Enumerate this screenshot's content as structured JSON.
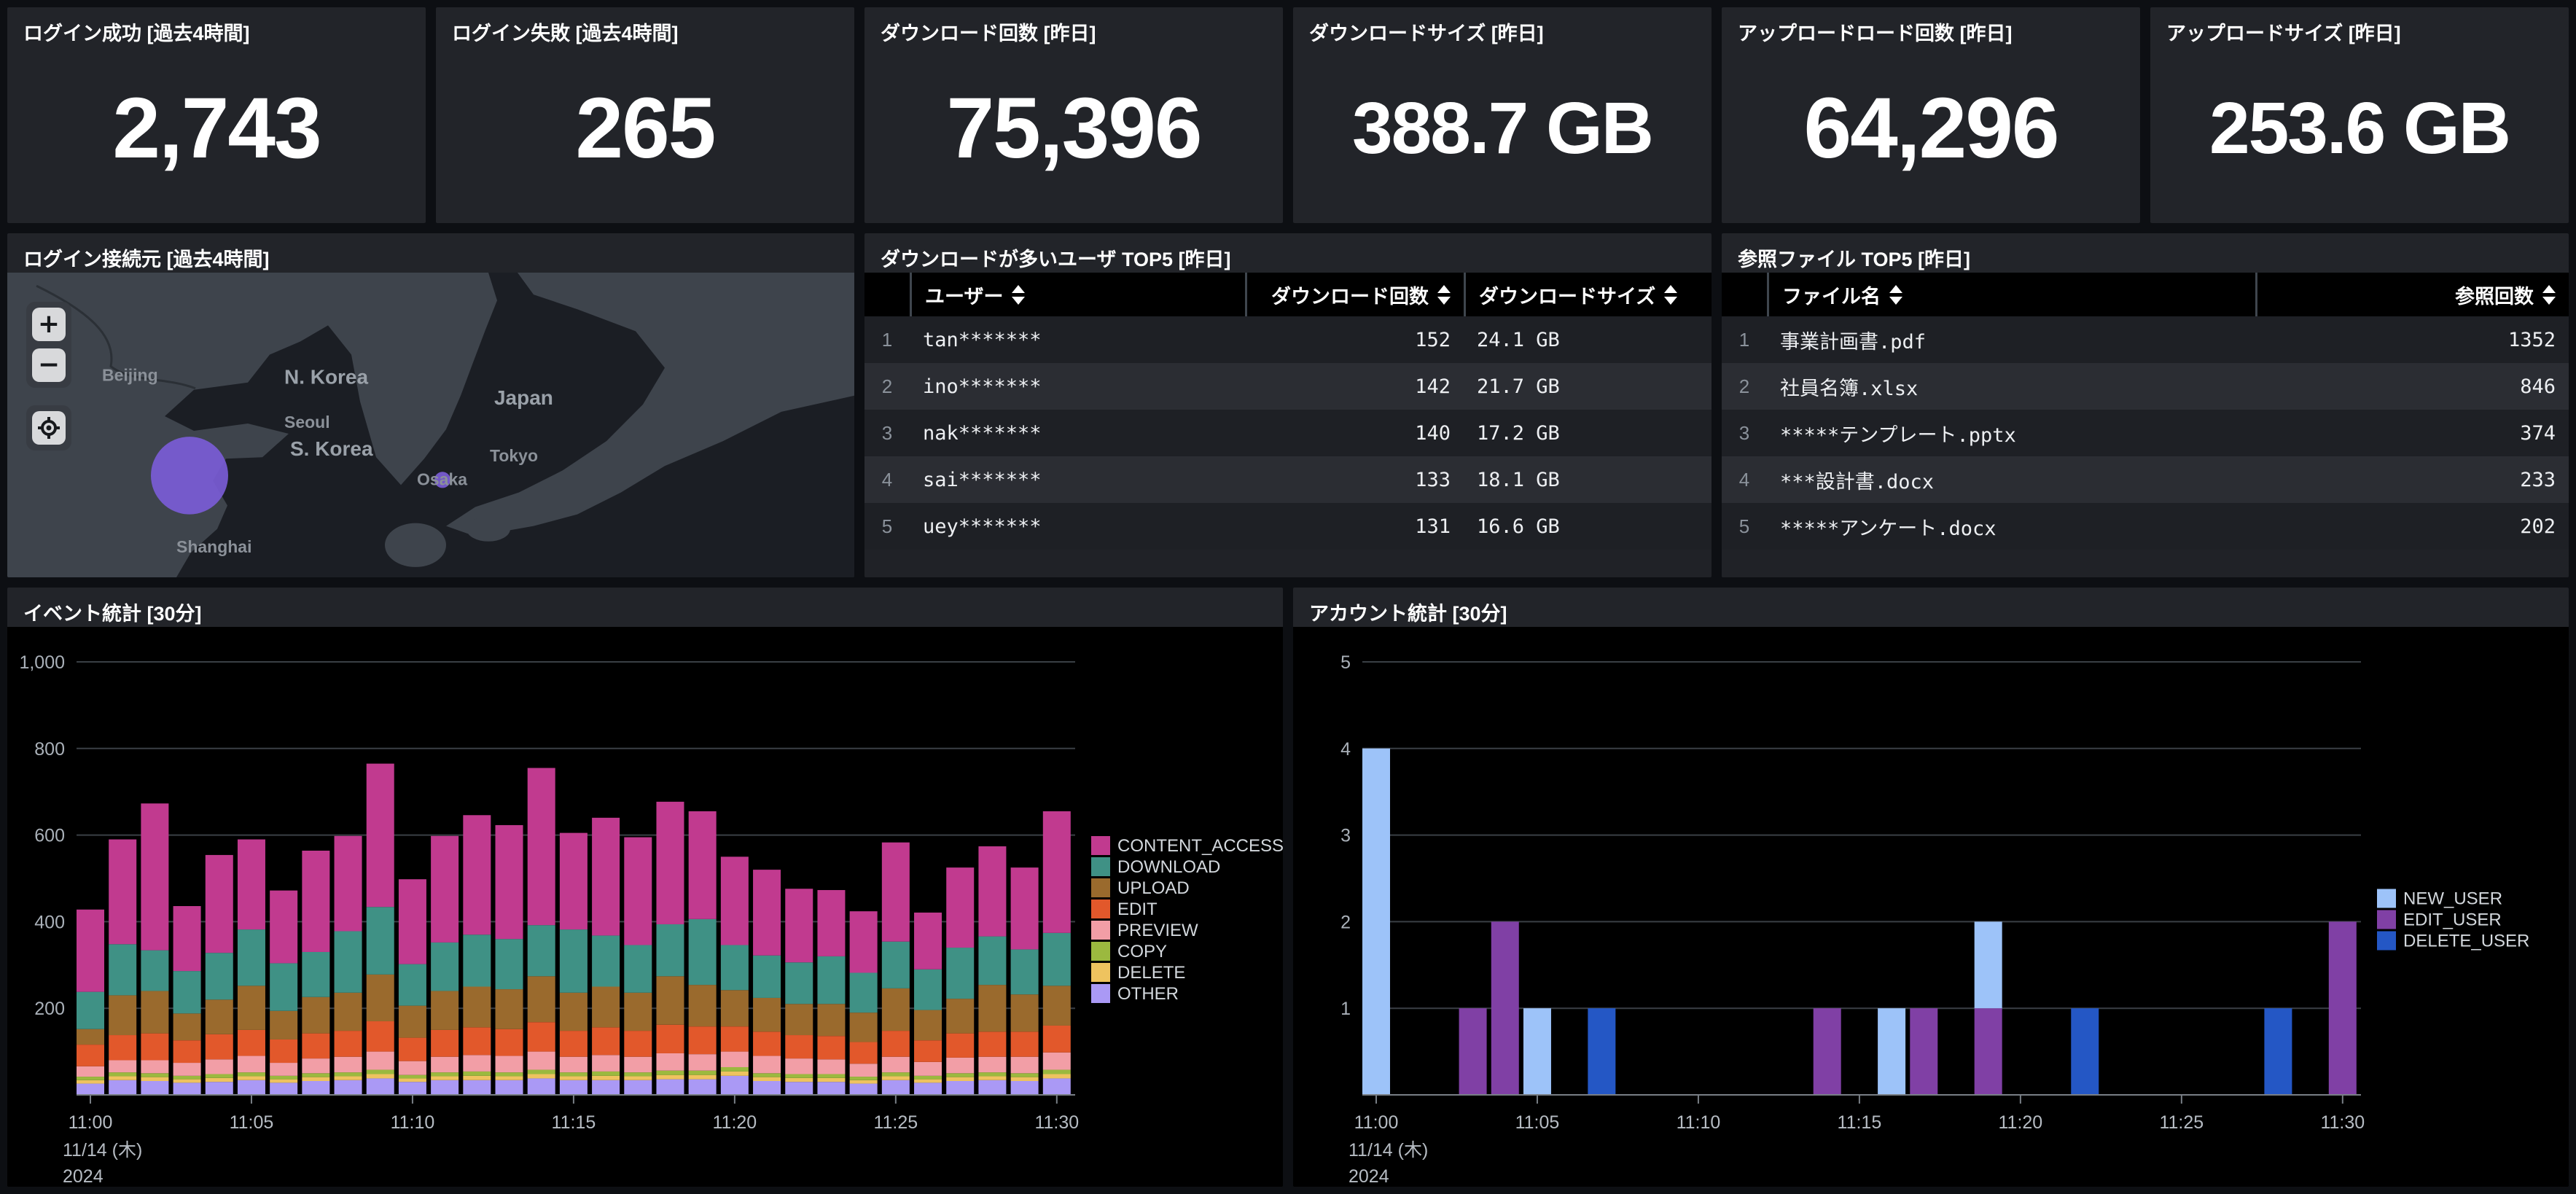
{
  "stats": [
    {
      "title": "ログイン成功 [過去4時間]",
      "value": "2,743"
    },
    {
      "title": "ログイン失敗 [過去4時間]",
      "value": "265"
    },
    {
      "title": "ダウンロード回数 [昨日]",
      "value": "75,396"
    },
    {
      "title": "ダウンロードサイズ [昨日]",
      "value": "388.7 GB"
    },
    {
      "title": "アップロードロード回数 [昨日]",
      "value": "64,296"
    },
    {
      "title": "アップロードサイズ [昨日]",
      "value": "253.6 GB"
    }
  ],
  "map": {
    "title": "ログイン接続元 [過去4時間]",
    "controls": {
      "zoom_in": "+",
      "zoom_out": "−",
      "locate": "locate"
    },
    "labels": {
      "beijing": "Beijing",
      "n_korea": "N. Korea",
      "seoul": "Seoul",
      "s_korea": "S. Korea",
      "japan": "Japan",
      "tokyo": "Tokyo",
      "osaka": "Osaka",
      "shanghai": "Shanghai"
    },
    "marker_color": "#7a5cd6",
    "land_color": "#3e444c",
    "sea_color": "#1b1e24"
  },
  "users_table": {
    "title": "ダウンロードが多いユーザ TOP5 [昨日]",
    "headers": [
      "ユーザー",
      "ダウンロード回数",
      "ダウンロードサイズ"
    ],
    "rows": [
      [
        "1",
        "tan*******",
        "152",
        "24.1 GB"
      ],
      [
        "2",
        "ino*******",
        "142",
        "21.7 GB"
      ],
      [
        "3",
        "nak*******",
        "140",
        "17.2 GB"
      ],
      [
        "4",
        "sai*******",
        "133",
        "18.1 GB"
      ],
      [
        "5",
        "uey*******",
        "131",
        "16.6 GB"
      ]
    ]
  },
  "files_table": {
    "title": "参照ファイル TOP5 [昨日]",
    "headers": [
      "ファイル名",
      "参照回数"
    ],
    "rows": [
      [
        "1",
        "事業計画書.pdf",
        "1352"
      ],
      [
        "2",
        "社員名簿.xlsx",
        "846"
      ],
      [
        "3",
        "*****テンプレート.pptx",
        "374"
      ],
      [
        "4",
        "***設計書.docx",
        "233"
      ],
      [
        "5",
        "*****アンケート.docx",
        "202"
      ]
    ]
  },
  "chart_data": [
    {
      "type": "bar",
      "stacked": true,
      "title": "イベント統計 [30分]",
      "xlabel": "",
      "ylabel": "",
      "ylim": [
        0,
        1000
      ],
      "grid": true,
      "legend_position": "right",
      "x": [
        "11:00",
        "11:01",
        "11:02",
        "11:03",
        "11:04",
        "11:05",
        "11:06",
        "11:07",
        "11:08",
        "11:09",
        "11:10",
        "11:11",
        "11:12",
        "11:13",
        "11:14",
        "11:15",
        "11:16",
        "11:17",
        "11:18",
        "11:19",
        "11:20",
        "11:21",
        "11:22",
        "11:23",
        "11:24",
        "11:25",
        "11:26",
        "11:27",
        "11:28",
        "11:29",
        "11:30"
      ],
      "xticks": [
        0,
        5,
        10,
        15,
        20,
        25,
        30
      ],
      "x_date_lines": [
        "11/14 (木)",
        "2024"
      ],
      "yticks": [
        {
          "v": 200,
          "label": "200"
        },
        {
          "v": 400,
          "label": "400"
        },
        {
          "v": 600,
          "label": "600"
        },
        {
          "v": 800,
          "label": "800"
        },
        {
          "v": 1000,
          "label": "1,000"
        }
      ],
      "series": [
        {
          "name": "CONTENT_ACCESS",
          "color": "#c13a8f",
          "values": [
            190,
            242,
            339,
            150,
            226,
            208,
            168,
            234,
            220,
            331,
            196,
            246,
            276,
            263,
            363,
            223,
            272,
            249,
            283,
            249,
            204,
            198,
            170,
            153,
            142,
            229,
            131,
            185,
            208,
            189,
            281
          ]
        },
        {
          "name": "DOWNLOAD",
          "color": "#3f9185",
          "values": [
            86,
            118,
            94,
            98,
            108,
            130,
            110,
            104,
            142,
            156,
            96,
            112,
            120,
            116,
            118,
            146,
            118,
            110,
            120,
            152,
            104,
            98,
            96,
            110,
            92,
            108,
            94,
            118,
            112,
            104,
            122
          ]
        },
        {
          "name": "UPLOAD",
          "color": "#9a6a2d",
          "values": [
            36,
            92,
            98,
            62,
            80,
            102,
            66,
            84,
            88,
            108,
            74,
            90,
            94,
            92,
            106,
            88,
            94,
            88,
            112,
            96,
            84,
            78,
            72,
            74,
            68,
            98,
            70,
            80,
            108,
            86,
            92
          ]
        },
        {
          "name": "EDIT",
          "color": "#e2582b",
          "values": [
            50,
            58,
            62,
            52,
            58,
            60,
            54,
            58,
            60,
            70,
            54,
            62,
            64,
            62,
            68,
            60,
            64,
            60,
            66,
            64,
            58,
            56,
            54,
            54,
            50,
            60,
            50,
            56,
            58,
            58,
            62
          ]
        },
        {
          "name": "PREVIEW",
          "color": "#f29ea6",
          "values": [
            24,
            28,
            30,
            30,
            34,
            38,
            30,
            34,
            36,
            42,
            32,
            36,
            38,
            38,
            42,
            36,
            38,
            36,
            40,
            38,
            36,
            40,
            36,
            34,
            30,
            36,
            32,
            36,
            36,
            38,
            40
          ]
        },
        {
          "name": "COPY",
          "color": "#9bb93f",
          "values": [
            8,
            9,
            9,
            8,
            9,
            9,
            8,
            9,
            9,
            10,
            8,
            9,
            10,
            9,
            10,
            9,
            10,
            9,
            10,
            10,
            10,
            9,
            9,
            9,
            8,
            9,
            8,
            9,
            9,
            9,
            10
          ]
        },
        {
          "name": "DELETE",
          "color": "#eec35f",
          "values": [
            8,
            9,
            9,
            8,
            9,
            9,
            8,
            9,
            9,
            10,
            8,
            9,
            10,
            9,
            10,
            9,
            10,
            9,
            10,
            10,
            10,
            9,
            9,
            9,
            8,
            9,
            8,
            9,
            9,
            9,
            10
          ]
        },
        {
          "name": "OTHER",
          "color": "#aa99f5",
          "values": [
            26,
            34,
            32,
            28,
            30,
            34,
            28,
            32,
            34,
            38,
            30,
            34,
            34,
            34,
            38,
            34,
            34,
            34,
            36,
            36,
            44,
            32,
            30,
            30,
            26,
            34,
            28,
            32,
            34,
            32,
            38
          ]
        }
      ]
    },
    {
      "type": "bar",
      "stacked": true,
      "title": "アカウント統計 [30分]",
      "xlabel": "",
      "ylabel": "",
      "ylim": [
        0,
        5
      ],
      "grid": true,
      "legend_position": "right",
      "x": [
        "11:00",
        "11:01",
        "11:02",
        "11:03",
        "11:04",
        "11:05",
        "11:06",
        "11:07",
        "11:08",
        "11:09",
        "11:10",
        "11:11",
        "11:12",
        "11:13",
        "11:14",
        "11:15",
        "11:16",
        "11:17",
        "11:18",
        "11:19",
        "11:20",
        "11:21",
        "11:22",
        "11:23",
        "11:24",
        "11:25",
        "11:26",
        "11:27",
        "11:28",
        "11:29",
        "11:30"
      ],
      "xticks": [
        0,
        5,
        10,
        15,
        20,
        25,
        30
      ],
      "x_date_lines": [
        "11/14 (木)",
        "2024"
      ],
      "yticks": [
        {
          "v": 1,
          "label": "1"
        },
        {
          "v": 2,
          "label": "2"
        },
        {
          "v": 3,
          "label": "3"
        },
        {
          "v": 4,
          "label": "4"
        },
        {
          "v": 5,
          "label": "5"
        }
      ],
      "series": [
        {
          "name": "NEW_USER",
          "color": "#9dc3f9",
          "values": [
            4,
            0,
            0,
            0,
            0,
            1,
            0,
            0,
            0,
            0,
            0,
            0,
            0,
            0,
            0,
            0,
            1,
            0,
            0,
            1,
            0,
            0,
            0,
            0,
            0,
            0,
            0,
            0,
            0,
            0,
            0
          ]
        },
        {
          "name": "EDIT_USER",
          "color": "#8040a5",
          "values": [
            0,
            0,
            0,
            1,
            2,
            0,
            0,
            0,
            0,
            0,
            0,
            0,
            0,
            0,
            1,
            0,
            0,
            1,
            0,
            1,
            0,
            0,
            0,
            0,
            0,
            0,
            0,
            0,
            0,
            0,
            2
          ]
        },
        {
          "name": "DELETE_USER",
          "color": "#2457c5",
          "values": [
            0,
            0,
            0,
            0,
            0,
            0,
            0,
            1,
            0,
            0,
            0,
            0,
            0,
            0,
            0,
            0,
            0,
            0,
            0,
            0,
            0,
            0,
            1,
            0,
            0,
            0,
            0,
            0,
            1,
            0,
            0
          ]
        }
      ]
    }
  ]
}
